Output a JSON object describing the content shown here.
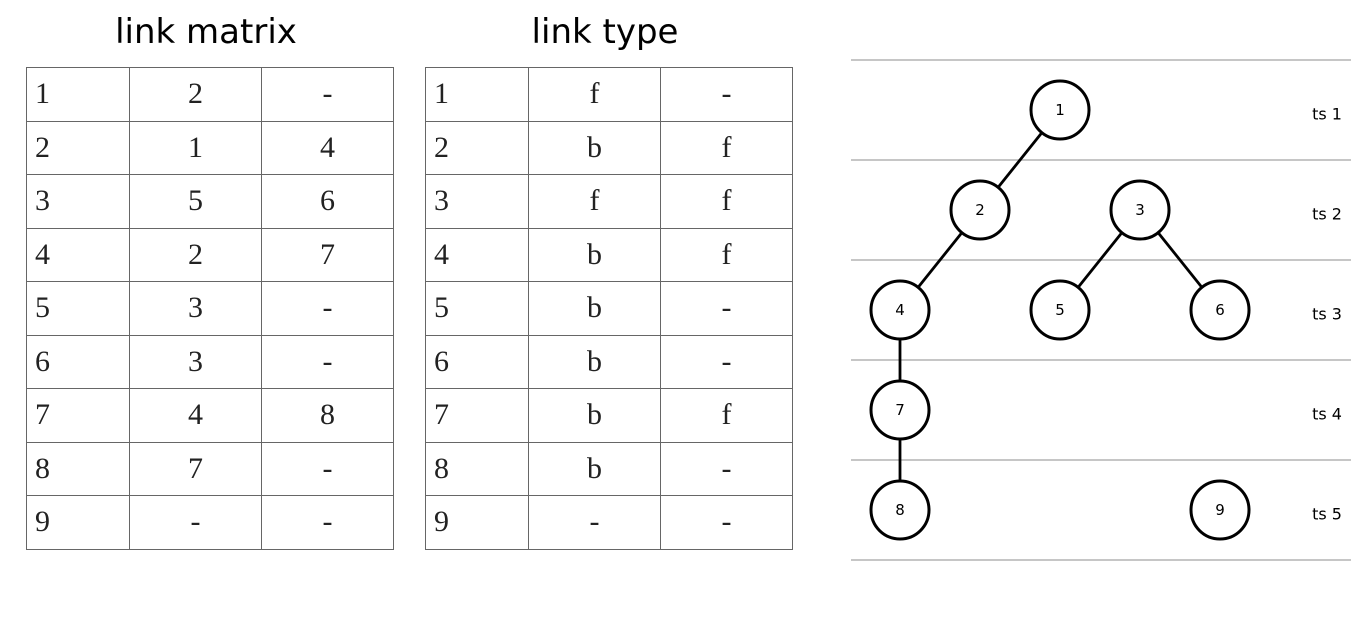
{
  "link_matrix": {
    "title": "link matrix",
    "rows": [
      [
        "1",
        "2",
        "-"
      ],
      [
        "2",
        "1",
        "4"
      ],
      [
        "3",
        "5",
        "6"
      ],
      [
        "4",
        "2",
        "7"
      ],
      [
        "5",
        "3",
        "-"
      ],
      [
        "6",
        "3",
        "-"
      ],
      [
        "7",
        "4",
        "8"
      ],
      [
        "8",
        "7",
        "-"
      ],
      [
        "9",
        "-",
        "-"
      ]
    ]
  },
  "link_type": {
    "title": "link type",
    "rows": [
      [
        "1",
        "f",
        "-"
      ],
      [
        "2",
        "b",
        "f"
      ],
      [
        "3",
        "f",
        "f"
      ],
      [
        "4",
        "b",
        "f"
      ],
      [
        "5",
        "b",
        "-"
      ],
      [
        "6",
        "b",
        "-"
      ],
      [
        "7",
        "b",
        "f"
      ],
      [
        "8",
        "b",
        "-"
      ],
      [
        "9",
        "-",
        "-"
      ]
    ]
  },
  "tree": {
    "timesteps": [
      "ts 1",
      "ts 2",
      "ts 3",
      "ts 4",
      "ts 5"
    ],
    "nodes": [
      {
        "label": "1",
        "ts": 1
      },
      {
        "label": "2",
        "ts": 2
      },
      {
        "label": "3",
        "ts": 2
      },
      {
        "label": "4",
        "ts": 3
      },
      {
        "label": "5",
        "ts": 3
      },
      {
        "label": "6",
        "ts": 3
      },
      {
        "label": "7",
        "ts": 4
      },
      {
        "label": "8",
        "ts": 5
      },
      {
        "label": "9",
        "ts": 5
      }
    ],
    "edges": [
      [
        "1",
        "2"
      ],
      [
        "2",
        "4"
      ],
      [
        "3",
        "5"
      ],
      [
        "3",
        "6"
      ],
      [
        "4",
        "7"
      ],
      [
        "7",
        "8"
      ]
    ]
  }
}
